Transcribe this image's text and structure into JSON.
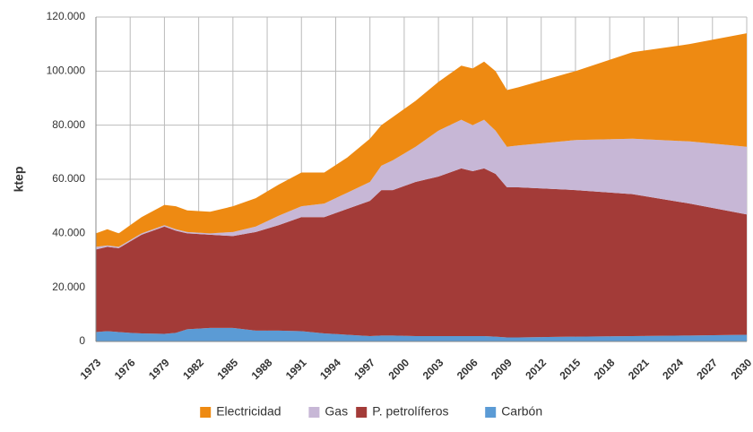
{
  "chart_data": {
    "type": "stacked_area",
    "ylabel": "ktep",
    "x": [
      1973,
      1974,
      1975,
      1976,
      1977,
      1979,
      1980,
      1981,
      1983,
      1985,
      1987,
      1989,
      1991,
      1993,
      1995,
      1997,
      1998,
      1999,
      2001,
      2003,
      2005,
      2006,
      2007,
      2008,
      2009,
      2010,
      2015,
      2020,
      2025,
      2030
    ],
    "series": [
      {
        "name": "Carbón",
        "color": "#5b9bd5",
        "values": [
          3500,
          3800,
          3500,
          3200,
          3000,
          2800,
          3200,
          4500,
          5000,
          5000,
          4000,
          4000,
          3800,
          3000,
          2500,
          2000,
          2200,
          2200,
          2000,
          2000,
          2000,
          2000,
          2000,
          1800,
          1500,
          1500,
          1800,
          2000,
          2200,
          2500
        ]
      },
      {
        "name": "P. petrolíferos",
        "color": "#a33b38",
        "values": [
          30500,
          31200,
          31000,
          33800,
          36500,
          39700,
          37800,
          35500,
          34500,
          34000,
          36500,
          39000,
          42200,
          43000,
          46500,
          50000,
          53800,
          53800,
          57000,
          59000,
          62000,
          61000,
          62000,
          60200,
          55500,
          55500,
          54200,
          52500,
          48800,
          44500
        ]
      },
      {
        "name": "Gas",
        "color": "#c7b7d6",
        "values": [
          1000,
          500,
          500,
          500,
          500,
          500,
          500,
          500,
          500,
          1500,
          2000,
          3500,
          4000,
          5000,
          6000,
          7000,
          9000,
          11000,
          13000,
          17000,
          18000,
          17000,
          18000,
          16000,
          15000,
          15500,
          18500,
          20500,
          23000,
          25000
        ]
      },
      {
        "name": "Electricidad",
        "color": "#ee8a12",
        "values": [
          5000,
          6000,
          5000,
          5500,
          6000,
          7500,
          8500,
          8000,
          8000,
          9500,
          10500,
          11500,
          12500,
          11500,
          13000,
          16000,
          15000,
          16000,
          17000,
          18000,
          20000,
          21000,
          21500,
          22000,
          21000,
          21500,
          25500,
          32000,
          36000,
          42000
        ]
      }
    ],
    "xlim": [
      1973,
      2030
    ],
    "xticks": [
      1973,
      1976,
      1979,
      1982,
      1985,
      1988,
      1991,
      1994,
      1997,
      2000,
      2003,
      2006,
      2009,
      2012,
      2015,
      2018,
      2021,
      2024,
      2027,
      2030
    ],
    "ylim": [
      0,
      120000
    ],
    "yticks": [
      0,
      {
        "value": 20000,
        "label": "20.000"
      },
      {
        "value": 40000,
        "label": "40.000"
      },
      {
        "value": 60000,
        "label": "60.000"
      },
      {
        "value": 80000,
        "label": "80.000"
      },
      {
        "value": 100000,
        "label": "100.000"
      },
      {
        "value": 120000,
        "label": "120.000"
      }
    ],
    "grid": true,
    "legend": "bottom"
  }
}
